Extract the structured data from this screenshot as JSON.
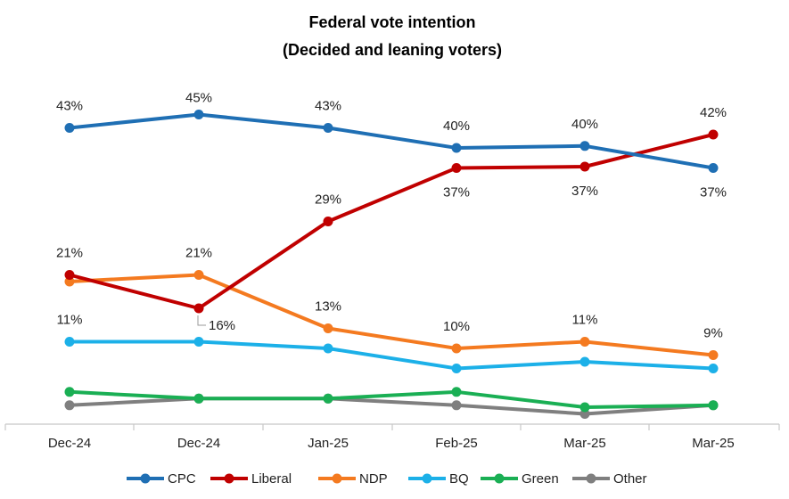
{
  "chart_data": {
    "type": "line",
    "title_line1": "Federal vote intention",
    "title_line2": "(Decided and leaning voters)",
    "categories": [
      "Dec-24",
      "Dec-24",
      "Jan-25",
      "Feb-25",
      "Mar-25",
      "Mar-25"
    ],
    "ylim": [
      0,
      50
    ],
    "grid": false,
    "legend_position": "bottom",
    "series": [
      {
        "name": "CPC",
        "color": "#1F6FB4",
        "values": [
          43,
          45,
          43,
          40,
          40.3,
          37
        ],
        "labels": [
          "43%",
          "45%",
          "43%",
          "40%",
          "40%",
          "37%"
        ]
      },
      {
        "name": "Liberal",
        "color": "#C00000",
        "values": [
          21,
          16,
          29,
          37,
          37.2,
          42
        ],
        "labels": [
          "21%",
          "16%",
          "29%",
          "37%",
          "37%",
          "42%"
        ]
      },
      {
        "name": "NDP",
        "color": "#F47A20",
        "values": [
          20,
          21,
          13,
          10,
          11,
          9
        ],
        "labels": [
          "",
          "21%",
          "13%",
          "10%",
          "11%",
          "9%"
        ]
      },
      {
        "name": "BQ",
        "color": "#1CB0E8",
        "values": [
          11,
          11,
          10,
          7,
          8,
          7
        ],
        "labels": [
          "11%",
          "",
          "",
          "",
          "",
          ""
        ]
      },
      {
        "name": "Green",
        "color": "#1AAF54",
        "values": [
          3.5,
          2.5,
          2.5,
          3.5,
          1.2,
          1.5
        ],
        "labels": [
          "",
          "",
          "",
          "",
          "",
          ""
        ]
      },
      {
        "name": "Other",
        "color": "#7F7F7F",
        "values": [
          1.5,
          2.5,
          2.5,
          1.5,
          0.2,
          1.5
        ],
        "labels": [
          "",
          "",
          "",
          "",
          "",
          ""
        ]
      }
    ]
  }
}
